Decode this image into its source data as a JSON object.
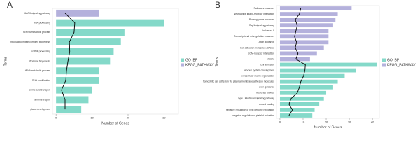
{
  "chart_data": [
    {
      "type": "bar",
      "orientation": "horizontal",
      "panel": "A",
      "xlabel": "Number of Genes",
      "ylabel": "Terms",
      "categories": [
        "MAPK signaling pathway",
        "RNA processing",
        "ncRNA metabolic process",
        "ribonucleoprotein complex biogenesis",
        "ncRNA processing",
        "ribosome biogenesis",
        "tRNA metabolic process",
        "RNA modification",
        "amino acid transport",
        "anion transport",
        "gland development"
      ],
      "series": [
        {
          "name": "GO_BP",
          "color": "#84d9c9",
          "values": [
            null,
            30,
            19,
            18,
            16,
            15,
            12,
            12,
            10,
            9,
            7
          ]
        },
        {
          "name": "KEGG_PATHWAY",
          "color": "#b4b1dc",
          "values": [
            12,
            null,
            null,
            null,
            null,
            null,
            null,
            null,
            null,
            null,
            null
          ]
        }
      ],
      "line": {
        "color": "#000000",
        "values": [
          2.5,
          5.2,
          5,
          3.7,
          3.8,
          3.3,
          2.9,
          2.7,
          1.5,
          2.5,
          2.5
        ]
      },
      "xlim": [
        -1,
        34
      ],
      "xticks": [
        0,
        10,
        20,
        30
      ],
      "legend": "right"
    },
    {
      "type": "bar",
      "orientation": "horizontal",
      "panel": "B",
      "xlabel": "Number of Genes",
      "ylabel": "Terms",
      "categories": [
        "Pathways in cancer",
        "Neuroactive ligand-receptor interaction",
        "Proteoglycans in cancer",
        "Rap1 signaling pathway",
        "Influenza A",
        "Transcriptional misregulation in cancer",
        "Axon guidance",
        "Cell adhesion molecules (CAMs)",
        "ECM-receptor interaction",
        "Malaria",
        "cell adhesion",
        "nervous system development",
        "extracellular matrix organization",
        "homophilic cell adhesion via plasma membrane adhesion molecules",
        "axon guidance",
        "response to virus",
        "type I interferon signaling pathway",
        "wound healing",
        "negative regulation of viral genome replication",
        "negative regulation of platelet activation"
      ],
      "series": [
        {
          "name": "GO_BP",
          "color": "#84d9c9",
          "values": [
            null,
            null,
            null,
            null,
            null,
            null,
            null,
            null,
            null,
            null,
            42,
            33,
            28,
            25,
            23,
            20,
            19,
            17,
            15,
            14
          ]
        },
        {
          "name": "KEGG_PATHWAY",
          "color": "#b4b1dc",
          "values": [
            31,
            25,
            24,
            23,
            21,
            21,
            21,
            19,
            16,
            13,
            null,
            null,
            null,
            null,
            null,
            null,
            null,
            null,
            null,
            null
          ]
        }
      ],
      "line": {
        "color": "#000000",
        "values": [
          9,
          8.4,
          6.6,
          7.5,
          6.9,
          6.3,
          7.2,
          6.6,
          7.8,
          6.9,
          11,
          10.8,
          10.2,
          9,
          8.4,
          7.5,
          4.8,
          3.9,
          5.4,
          3.9
        ]
      },
      "xlim": [
        -1.5,
        43
      ],
      "xticks": [
        0,
        10,
        20,
        30,
        40
      ],
      "legend": "right"
    }
  ]
}
